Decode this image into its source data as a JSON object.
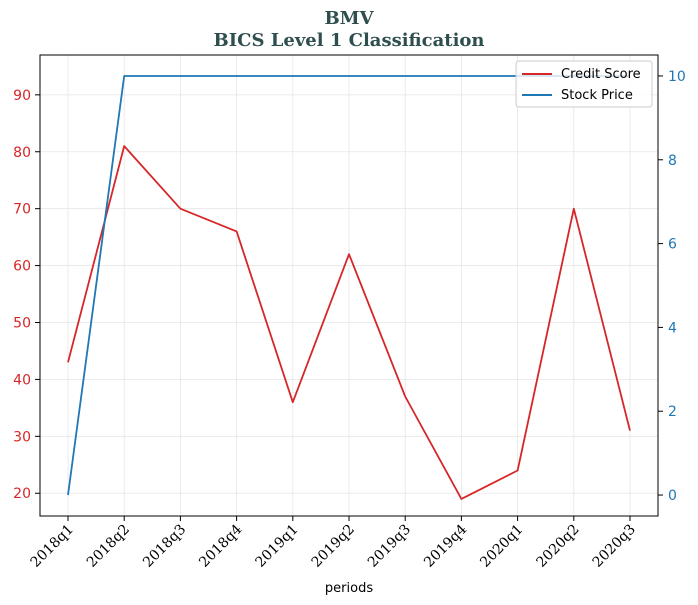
{
  "chart_data": {
    "type": "line",
    "title": "BMV",
    "subtitle": "BICS Level 1 Classification",
    "xlabel": "periods",
    "categories": [
      "2018q1",
      "2018q2",
      "2018q3",
      "2018q4",
      "2019q1",
      "2019q2",
      "2019q3",
      "2019q4",
      "2020q1",
      "2020q2",
      "2020q3"
    ],
    "series": [
      {
        "name": "Credit Score",
        "axis": "left",
        "color": "#d62728",
        "values": [
          43,
          81,
          70,
          66,
          36,
          62,
          37,
          19,
          24,
          70,
          31
        ]
      },
      {
        "name": "Stock Price",
        "axis": "right",
        "color": "#1f77b4",
        "values": [
          0,
          10,
          10,
          10,
          10,
          10,
          10,
          10,
          10,
          10,
          10
        ]
      }
    ],
    "y_left": {
      "ylim": [
        16,
        97
      ],
      "ticks": [
        20,
        30,
        40,
        50,
        60,
        70,
        80,
        90
      ],
      "color": "#d62728"
    },
    "y_right": {
      "ylim": [
        -0.5,
        10.5
      ],
      "ticks": [
        0,
        2,
        4,
        6,
        8,
        10
      ],
      "color": "#1f77b4"
    },
    "grid": true,
    "legend_position": "top-right"
  }
}
